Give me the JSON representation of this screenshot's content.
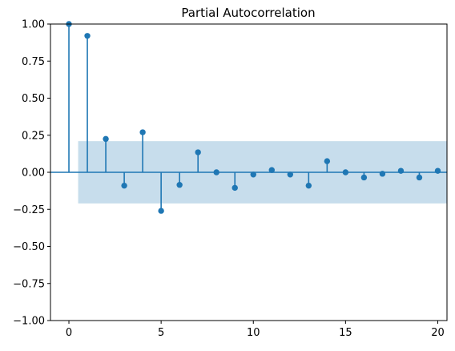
{
  "chart_data": {
    "type": "stem",
    "title": "Partial Autocorrelation",
    "xlabel": "",
    "ylabel": "",
    "x": [
      0,
      1,
      2,
      3,
      4,
      5,
      6,
      7,
      8,
      9,
      10,
      11,
      12,
      13,
      14,
      15,
      16,
      17,
      18,
      19,
      20
    ],
    "values": [
      1.0,
      0.92,
      0.225,
      -0.09,
      0.27,
      -0.26,
      -0.085,
      0.135,
      0.0,
      -0.105,
      -0.015,
      0.015,
      -0.015,
      -0.09,
      0.075,
      0.0,
      -0.035,
      -0.01,
      0.01,
      -0.035,
      0.01
    ],
    "confidence_band": {
      "lower": -0.21,
      "upper": 0.21,
      "x_range": [
        0.5,
        20.5
      ]
    },
    "xlim": [
      -1,
      20.5
    ],
    "ylim": [
      -1.0,
      1.0
    ],
    "xticks": [
      0,
      5,
      10,
      15,
      20
    ],
    "xtick_labels": [
      "0",
      "5",
      "10",
      "15",
      "20"
    ],
    "yticks": [
      -1.0,
      -0.75,
      -0.5,
      -0.25,
      0.0,
      0.25,
      0.5,
      0.75,
      1.0
    ],
    "ytick_labels": [
      "−1.00",
      "−0.75",
      "−0.50",
      "−0.25",
      "0.00",
      "0.25",
      "0.50",
      "0.75",
      "1.00"
    ],
    "grid": false,
    "colors": {
      "stem": "#1f77b4",
      "band": "#1f77b4",
      "zero_line": "#1f77b4",
      "axes": "#000000"
    }
  }
}
